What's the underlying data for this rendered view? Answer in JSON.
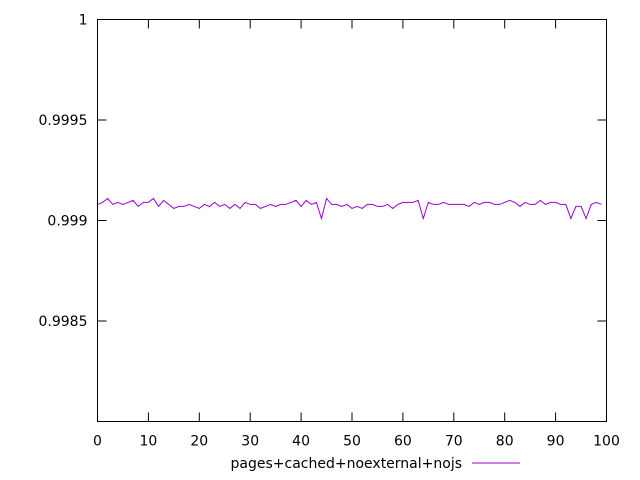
{
  "chart_data": {
    "type": "line",
    "xlim": [
      0,
      100
    ],
    "ylim": [
      0.998,
      1.0
    ],
    "xticks": [
      0,
      10,
      20,
      30,
      40,
      50,
      60,
      70,
      80,
      90,
      100
    ],
    "yticks": [
      0.9985,
      0.999,
      0.9995,
      1
    ],
    "xtick_labels": [
      "0",
      "10",
      "20",
      "30",
      "40",
      "50",
      "60",
      "70",
      "80",
      "90",
      "100"
    ],
    "ytick_labels": [
      "0.9985",
      "0.999",
      "0.9995",
      "1"
    ],
    "grid": false,
    "legend_position": "bottom-center",
    "series": [
      {
        "name": "pages+cached+noexternal+nojs",
        "color": "#9400d3",
        "x": [
          0,
          1,
          2,
          3,
          4,
          5,
          6,
          7,
          8,
          9,
          10,
          11,
          12,
          13,
          14,
          15,
          16,
          17,
          18,
          19,
          20,
          21,
          22,
          23,
          24,
          25,
          26,
          27,
          28,
          29,
          30,
          31,
          32,
          33,
          34,
          35,
          36,
          37,
          38,
          39,
          40,
          41,
          42,
          43,
          44,
          45,
          46,
          47,
          48,
          49,
          50,
          51,
          52,
          53,
          54,
          55,
          56,
          57,
          58,
          59,
          60,
          61,
          62,
          63,
          64,
          65,
          66,
          67,
          68,
          69,
          70,
          71,
          72,
          73,
          74,
          75,
          76,
          77,
          78,
          79,
          80,
          81,
          82,
          83,
          84,
          85,
          86,
          87,
          88,
          89,
          90,
          91,
          92,
          93,
          94,
          95,
          96,
          97,
          98,
          99
        ],
        "values": [
          0.99908,
          0.99909,
          0.99911,
          0.99908,
          0.99909,
          0.99908,
          0.99909,
          0.9991,
          0.99907,
          0.99909,
          0.99909,
          0.99911,
          0.99907,
          0.9991,
          0.99908,
          0.99906,
          0.99907,
          0.99907,
          0.99908,
          0.99907,
          0.99906,
          0.99908,
          0.99907,
          0.99909,
          0.99907,
          0.99908,
          0.99906,
          0.99908,
          0.99906,
          0.99909,
          0.99908,
          0.99908,
          0.99906,
          0.99907,
          0.99908,
          0.99907,
          0.99908,
          0.99908,
          0.99909,
          0.9991,
          0.99907,
          0.9991,
          0.99908,
          0.99909,
          0.99901,
          0.99911,
          0.99908,
          0.99908,
          0.99907,
          0.99908,
          0.99906,
          0.99907,
          0.99906,
          0.99908,
          0.99908,
          0.99907,
          0.99907,
          0.99908,
          0.99906,
          0.99908,
          0.99909,
          0.99909,
          0.99909,
          0.9991,
          0.99901,
          0.99909,
          0.99908,
          0.99908,
          0.99909,
          0.99908,
          0.99908,
          0.99908,
          0.99908,
          0.99907,
          0.99909,
          0.99908,
          0.99909,
          0.99909,
          0.99908,
          0.99908,
          0.99909,
          0.9991,
          0.99909,
          0.99907,
          0.99909,
          0.99908,
          0.99908,
          0.9991,
          0.99908,
          0.99909,
          0.99909,
          0.99908,
          0.99908,
          0.99901,
          0.99907,
          0.99907,
          0.99901,
          0.99908,
          0.99909,
          0.99908
        ]
      }
    ]
  }
}
